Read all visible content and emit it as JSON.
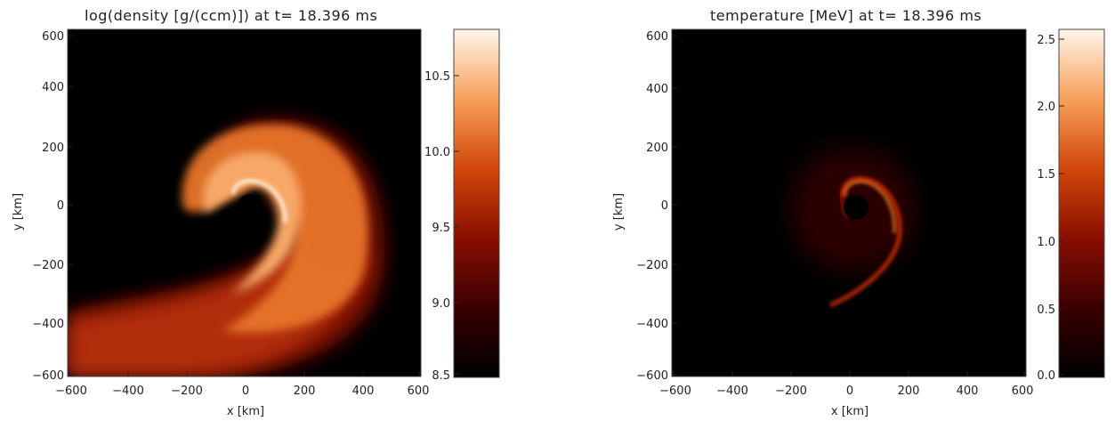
{
  "chart_data": [
    {
      "type": "heatmap",
      "title": "log(density [g/(ccm)]) at t= 18.396 ms",
      "xlabel": "x [km]",
      "ylabel": "y [km]",
      "xlim": [
        -600,
        600
      ],
      "ylim": [
        -600,
        600
      ],
      "xticks": [
        -600,
        -400,
        -200,
        0,
        200,
        400,
        600
      ],
      "yticks": [
        -600,
        -400,
        -200,
        0,
        200,
        400,
        600
      ],
      "colorbar": {
        "min": 8.5,
        "max": 10.8,
        "ticks": [
          8.5,
          9.0,
          9.5,
          10.0,
          10.5
        ]
      }
    },
    {
      "type": "heatmap",
      "title": "temperature [MeV] at t= 18.396 ms",
      "xlabel": "x [km]",
      "ylabel": "y [km]",
      "xlim": [
        -600,
        600
      ],
      "ylim": [
        -600,
        600
      ],
      "xticks": [
        -600,
        -400,
        -200,
        0,
        200,
        400,
        600
      ],
      "yticks": [
        -600,
        -400,
        -200,
        0,
        200,
        400,
        600
      ],
      "colorbar": {
        "min": 0.0,
        "max": 2.55,
        "ticks": [
          0.0,
          0.5,
          1.0,
          1.5,
          2.0,
          2.5
        ]
      }
    }
  ]
}
